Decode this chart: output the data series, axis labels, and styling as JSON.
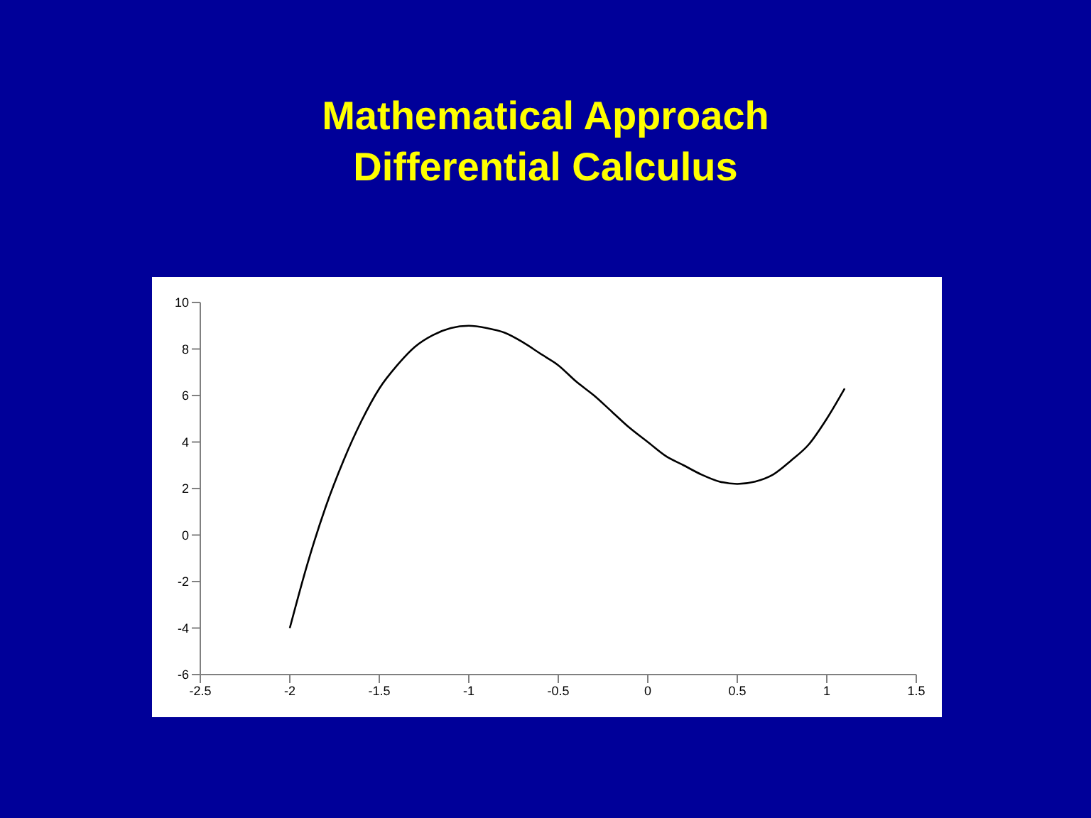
{
  "chart_data": {
    "type": "line",
    "title": "Mathematical Approach",
    "subtitle": "Differential Calculus",
    "x": [
      -2,
      -1.9,
      -1.8,
      -1.7,
      -1.6,
      -1.5,
      -1.4,
      -1.3,
      -1.2,
      -1.1,
      -1,
      -0.9,
      -0.8,
      -0.7,
      -0.6,
      -0.5,
      -0.4,
      -0.3,
      -0.2,
      -0.1,
      0,
      0.1,
      0.2,
      0.3,
      0.4,
      0.5,
      0.6,
      0.7,
      0.8,
      0.9,
      1,
      1.1
    ],
    "series": [
      {
        "color": "#000000",
        "values": [
          -4,
          -1.2,
          1.2,
          3.2,
          4.9,
          6.3,
          7.3,
          8.1,
          8.6,
          8.9,
          9,
          8.9,
          8.7,
          8.3,
          7.8,
          7.3,
          6.6,
          6.0,
          5.3,
          4.6,
          4,
          3.4,
          3.0,
          2.6,
          2.3,
          2.2,
          2.3,
          2.6,
          3.2,
          3.9,
          5,
          6.3
        ]
      }
    ],
    "xlim": [
      -2.5,
      1.5
    ],
    "xticks": [
      -2.5,
      -2,
      -1.5,
      -1,
      -0.5,
      0,
      0.5,
      1,
      1.5
    ],
    "ylim": [
      -6,
      10
    ],
    "yticks": [
      -6,
      -4,
      -2,
      0,
      2,
      4,
      6,
      8,
      10
    ],
    "grid": false,
    "marker": "none",
    "line_style": "solid"
  }
}
